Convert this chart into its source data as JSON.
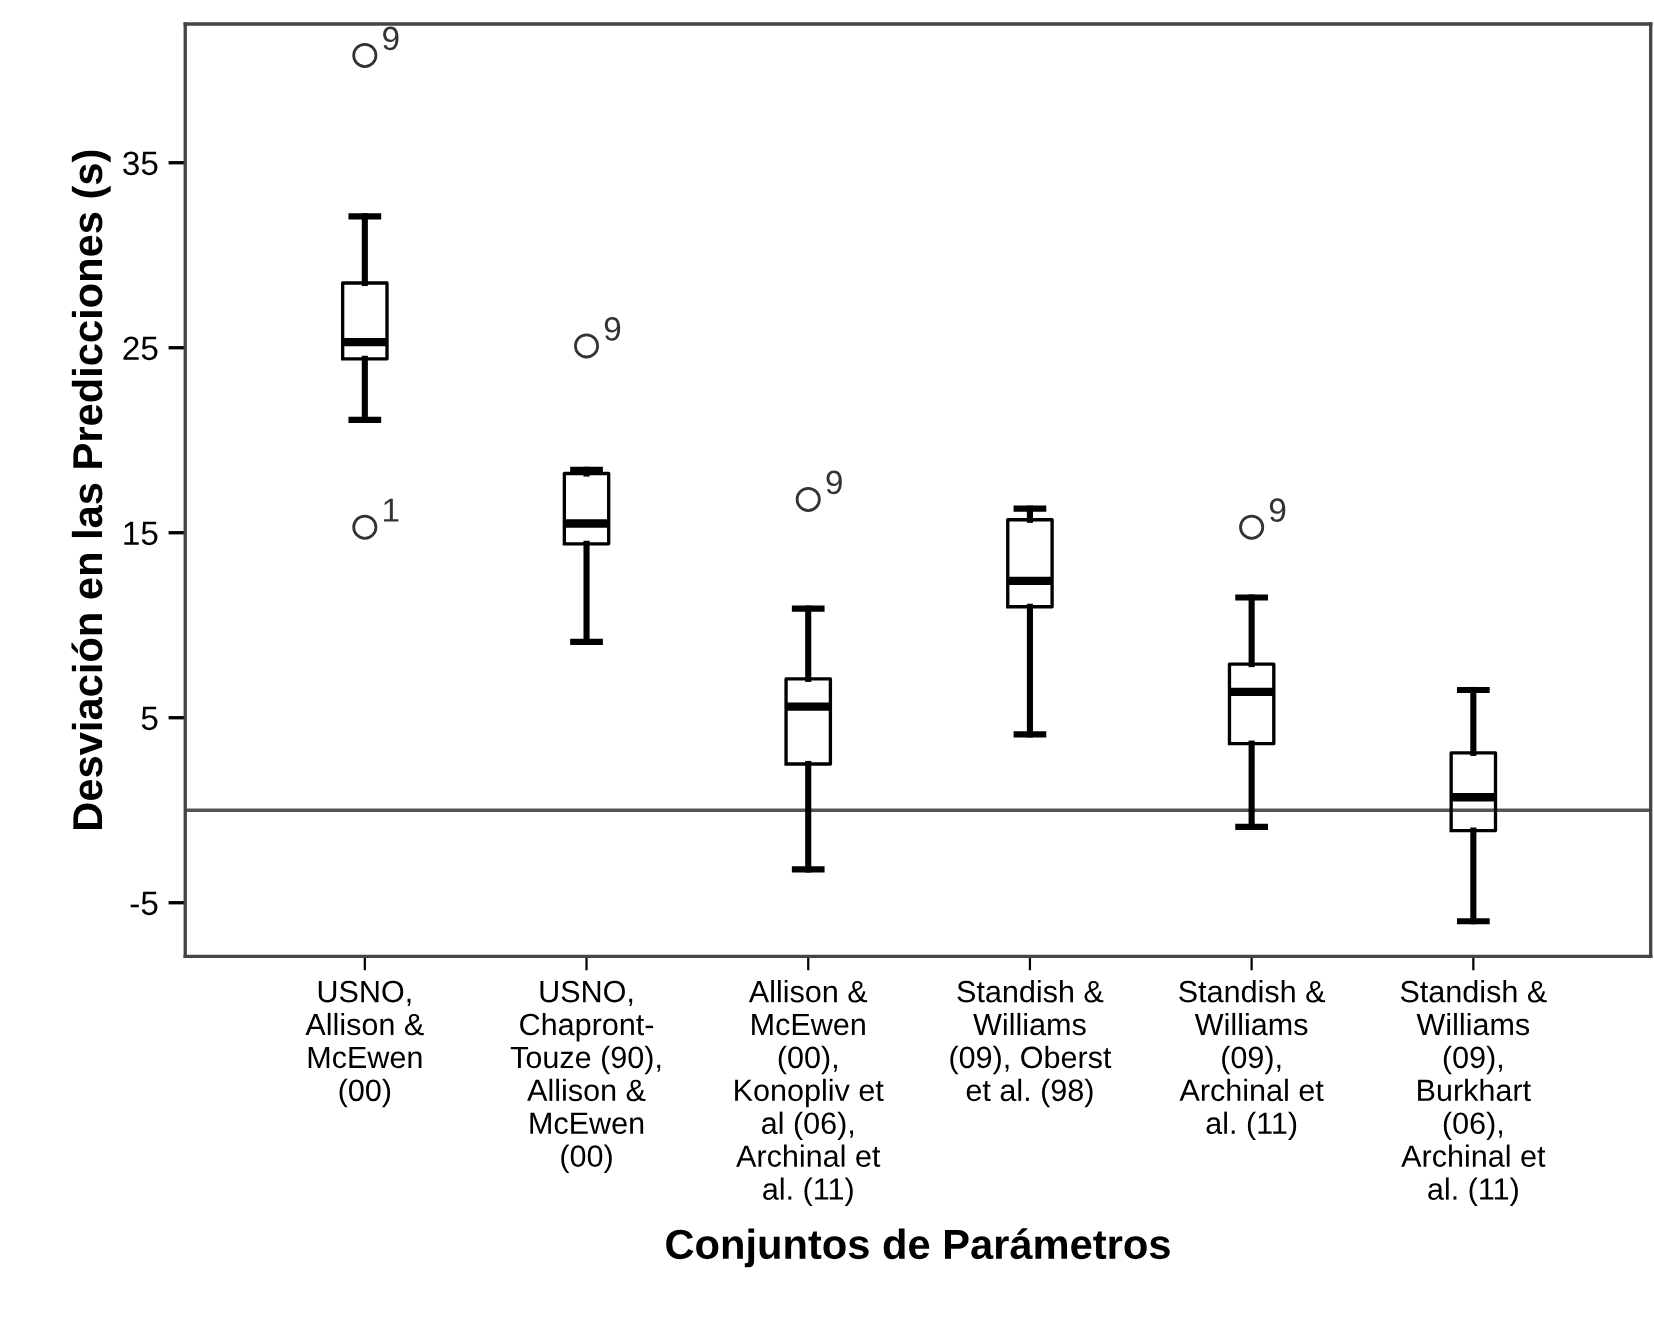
{
  "chart_data": {
    "type": "box",
    "xlabel": "Conjuntos de Parámetros",
    "ylabel": "Desviación en las Predicciones (s)",
    "categories": [
      "USNO,\nAllison &\nMcEwen\n(00)",
      "USNO,\nChapront-\nTouze (90),\nAllison &\nMcEwen\n(00)",
      "Allison &\nMcEwen\n(00),\nKonopliv et\nal (06),\nArchinal et\nal. (11)",
      "Standish &\nWilliams\n(09), Oberst\net al. (98)",
      "Standish &\nWilliams\n(09),\nArchinal et\nal. (11)",
      "Standish &\nWilliams\n(09),\nBurkhart\n(06),\nArchinal et\nal. (11)"
    ],
    "boxes": [
      {
        "low": 21.1,
        "q1": 24.4,
        "median": 25.3,
        "q3": 28.5,
        "high": 32.1,
        "outliers": [
          40.8,
          15.3
        ]
      },
      {
        "low": 9.1,
        "q1": 14.4,
        "median": 15.5,
        "q3": 18.2,
        "high": 18.4,
        "outliers": [
          25.1
        ]
      },
      {
        "low": -3.2,
        "q1": 2.5,
        "median": 5.6,
        "q3": 7.1,
        "high": 10.9,
        "outliers": [
          16.8
        ]
      },
      {
        "low": 4.1,
        "q1": 11.0,
        "median": 12.4,
        "q3": 15.7,
        "high": 16.3
      },
      {
        "low": -0.9,
        "q1": 3.6,
        "median": 6.4,
        "q3": 7.9,
        "high": 11.5,
        "outliers": [
          15.3
        ]
      },
      {
        "low": -6.0,
        "q1": -1.1,
        "median": 0.7,
        "q3": 3.1,
        "high": 6.5
      }
    ],
    "ylim": [
      -7.9,
      42.5
    ],
    "yticks": [
      -5,
      5,
      15,
      25,
      35
    ],
    "ref_lines": [
      {
        "axis": "y",
        "value": 0,
        "color": "#555555"
      }
    ],
    "annotations": [
      "9",
      "1",
      "9",
      "9",
      "9"
    ],
    "grid": false
  }
}
